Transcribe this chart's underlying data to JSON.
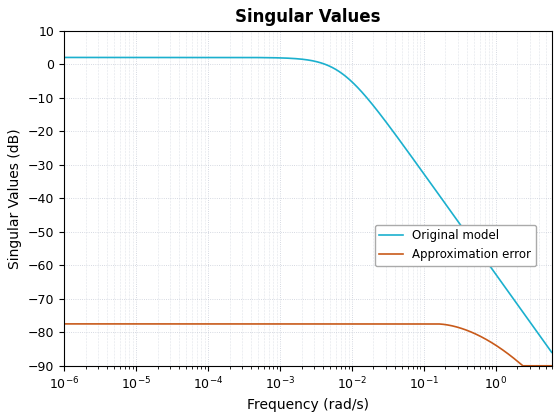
{
  "title": "Singular Values",
  "xlabel": "Frequency (rad/s)",
  "ylabel": "Singular Values (dB)",
  "xlim": [
    1e-06,
    6.0
  ],
  "ylim": [
    -90,
    10
  ],
  "yticks": [
    10,
    0,
    -10,
    -20,
    -30,
    -40,
    -50,
    -60,
    -70,
    -80,
    -90
  ],
  "background_color": "#ffffff",
  "line1_color": "#1bb0ce",
  "line2_color": "#c85a1a",
  "legend_labels": [
    "Original model",
    "Approximation error"
  ],
  "title_fontsize": 12,
  "label_fontsize": 10,
  "tick_fontsize": 9,
  "grid_color": "#c8cdd8",
  "line_width": 1.2
}
